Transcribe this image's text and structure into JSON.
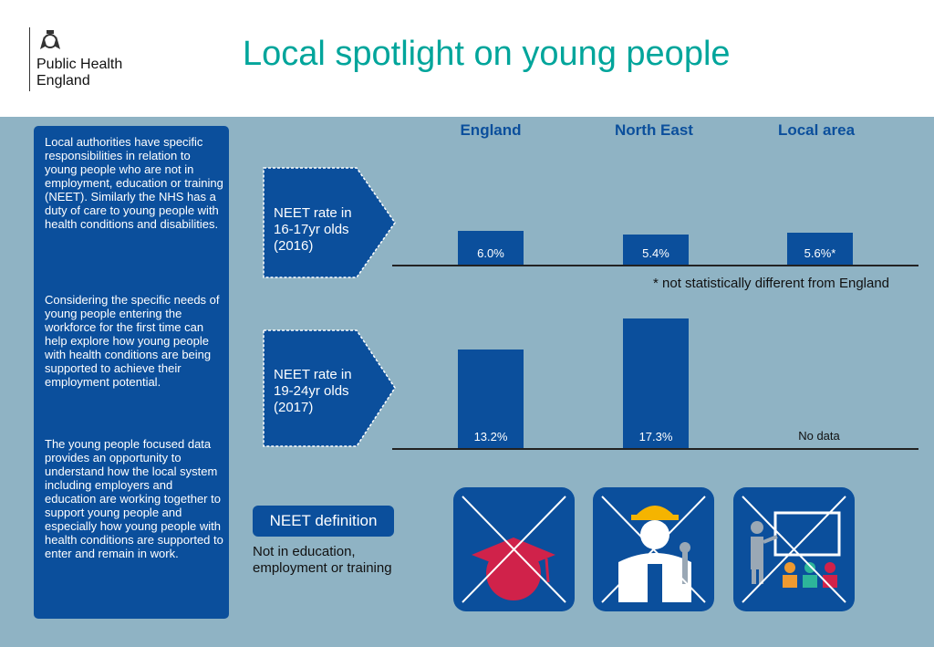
{
  "header": {
    "logo_line1": "Public Health",
    "logo_line2": "England",
    "title": "Local spotlight on young people"
  },
  "sidebar": {
    "para1": "Local authorities have specific responsibilities in relation to young people who are not in employment, education or training (NEET). Similarly the NHS has a duty of care to young people with health conditions and disabilities.",
    "para2": "Considering the specific needs of young people entering the workforce for the first time can help explore how young people with health conditions are being supported to achieve their employment potential.",
    "para3": "The young people focused data provides an opportunity to understand how the local system including employers and education are working together to support young people and especially how young people with health conditions are supported to enter and remain in work."
  },
  "columns": [
    "England",
    "North East",
    "Local area"
  ],
  "rows": [
    {
      "label_line1": "NEET rate in",
      "label_line2": "16-17yr olds",
      "label_line3": "(2016)"
    },
    {
      "label_line1": "NEET rate in",
      "label_line2": "19-24yr olds",
      "label_line3": "(2017)"
    }
  ],
  "footnote": "* not statistically different from England",
  "no_data_label": "No data",
  "definition": {
    "button": "NEET definition",
    "text_line1": "Not in education,",
    "text_line2": "employment or training"
  },
  "icons": [
    "graduation-cap-crossed-icon",
    "worker-crossed-icon",
    "classroom-crossed-icon"
  ],
  "colors": {
    "brand_blue": "#0B4F9C",
    "title_teal": "#00A59B",
    "background": "#8FB3C4",
    "accent_red": "#D0224A"
  },
  "chart_data": [
    {
      "type": "bar",
      "categories": [
        "England",
        "North East",
        "Local area"
      ],
      "values": [
        6.0,
        5.4,
        5.6
      ],
      "labels": [
        "6.0%",
        "5.4%",
        "5.6%*"
      ],
      "ylabel": "NEET rate in 16-17yr olds (2016)"
    },
    {
      "type": "bar",
      "categories": [
        "England",
        "North East",
        "Local area"
      ],
      "values": [
        13.2,
        17.3,
        null
      ],
      "labels": [
        "13.2%",
        "17.3%",
        ""
      ],
      "ylabel": "NEET rate in 19-24yr olds (2017)"
    }
  ]
}
